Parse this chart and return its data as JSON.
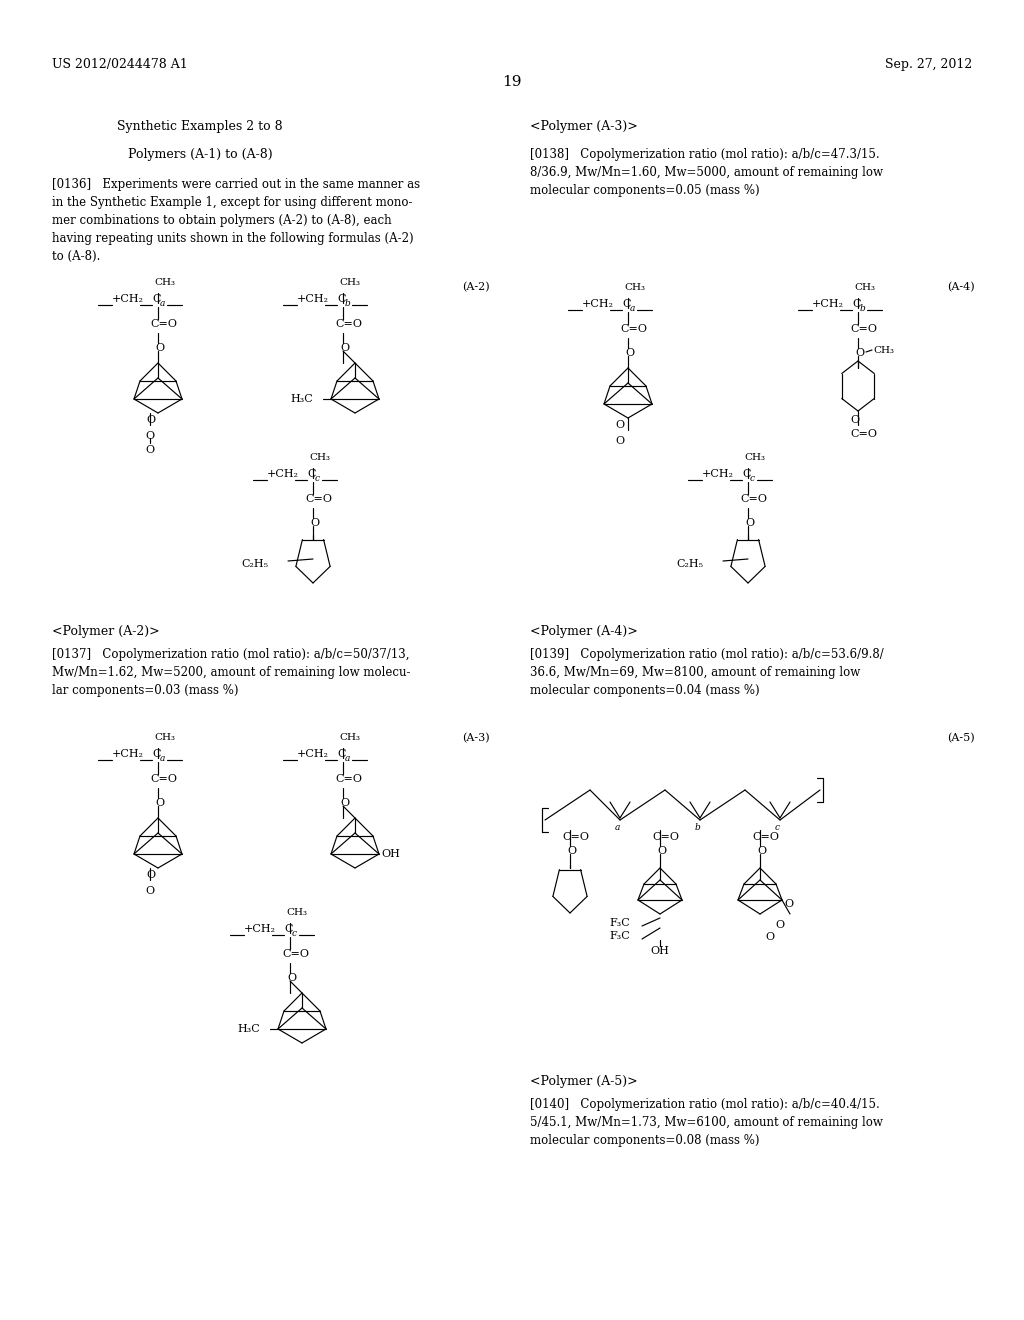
{
  "header_left": "US 2012/0244478 A1",
  "header_right": "Sep. 27, 2012",
  "page_num": "19",
  "bg": "#ffffff",
  "tc": "#000000",
  "synth_title": "Synthetic Examples 2 to 8",
  "poly_title": "Polymers (A-1) to (A-8)",
  "p136_1": "[0136]   Experiments were carried out in the same manner as",
  "p136_2": "in the Synthetic Example 1, except for using different mono-",
  "p136_3": "mer combinations to obtain polymers (A-2) to (A-8), each",
  "p136_4": "having repeating units shown in the following formulas (A-2)",
  "p136_5": "to (A-8).",
  "poly_a3_hdr": "<Polymer (A-3)>",
  "p138_1": "[0138]   Copolymerization ratio (mol ratio): a/b/c=47.3/15.",
  "p138_2": "8/36.9, Mw/Mn=1.60, Mw=5000, amount of remaining low",
  "p138_3": "molecular components=0.05 (mass %)",
  "poly_a2_hdr": "<Polymer (A-2)>",
  "p137_1": "[0137]   Copolymerization ratio (mol ratio): a/b/c=50/37/13,",
  "p137_2": "Mw/Mn=1.62, Mw=5200, amount of remaining low molecu-",
  "p137_3": "lar components=0.03 (mass %)",
  "poly_a4_hdr": "<Polymer (A-4)>",
  "p139_1": "[0139]   Copolymerization ratio (mol ratio): a/b/c=53.6/9.8/",
  "p139_2": "36.6, Mw/Mn=69, Mw=8100, amount of remaining low",
  "p139_3": "molecular components=0.04 (mass %)",
  "poly_a5_hdr": "<Polymer (A-5)>",
  "p140_1": "[0140]   Copolymerization ratio (mol ratio): a/b/c=40.4/15.",
  "p140_2": "5/45.1, Mw/Mn=1.73, Mw=6100, amount of remaining low",
  "p140_3": "molecular components=0.08 (mass %)"
}
